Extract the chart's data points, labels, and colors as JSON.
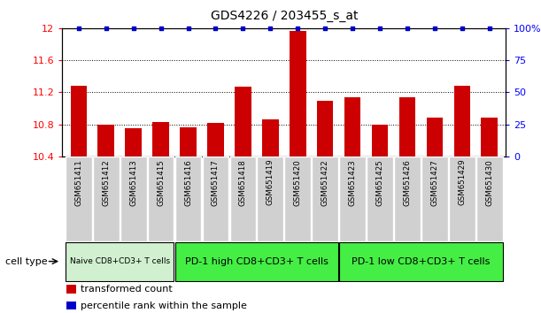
{
  "title": "GDS4226 / 203455_s_at",
  "categories": [
    "GSM651411",
    "GSM651412",
    "GSM651413",
    "GSM651415",
    "GSM651416",
    "GSM651417",
    "GSM651418",
    "GSM651419",
    "GSM651420",
    "GSM651422",
    "GSM651423",
    "GSM651425",
    "GSM651426",
    "GSM651427",
    "GSM651429",
    "GSM651430"
  ],
  "bar_values": [
    11.28,
    10.8,
    10.75,
    10.83,
    10.76,
    10.82,
    11.27,
    10.86,
    11.97,
    11.09,
    11.14,
    10.8,
    11.14,
    10.88,
    11.28,
    10.88
  ],
  "percentile_values": [
    100,
    100,
    100,
    100,
    100,
    100,
    100,
    100,
    100,
    100,
    100,
    100,
    100,
    100,
    100,
    100
  ],
  "bar_color": "#cc0000",
  "percentile_color": "#0000cc",
  "ylim_left": [
    10.4,
    12.0
  ],
  "ylim_right": [
    0,
    100
  ],
  "yticks_left": [
    10.4,
    10.8,
    11.2,
    11.6,
    12.0
  ],
  "ytick_labels_left": [
    "10.4",
    "10.8",
    "11.2",
    "11.6",
    "12"
  ],
  "yticks_right": [
    0,
    25,
    50,
    75,
    100
  ],
  "ytick_labels_right": [
    "0",
    "25",
    "50",
    "75",
    "100%"
  ],
  "cell_groups": [
    {
      "label": "Naive CD8+CD3+ T cells",
      "start": 0,
      "end": 3,
      "color": "#d0f0d0"
    },
    {
      "label": "PD-1 high CD8+CD3+ T cells",
      "start": 4,
      "end": 9,
      "color": "#44ee44"
    },
    {
      "label": "PD-1 low CD8+CD3+ T cells",
      "start": 10,
      "end": 15,
      "color": "#44ee44"
    }
  ],
  "cell_type_label": "cell type",
  "legend_items": [
    {
      "label": "transformed count",
      "color": "#cc0000"
    },
    {
      "label": "percentile rank within the sample",
      "color": "#0000cc"
    }
  ],
  "background_color": "#ffffff",
  "tick_label_bg": "#d3d3d3"
}
